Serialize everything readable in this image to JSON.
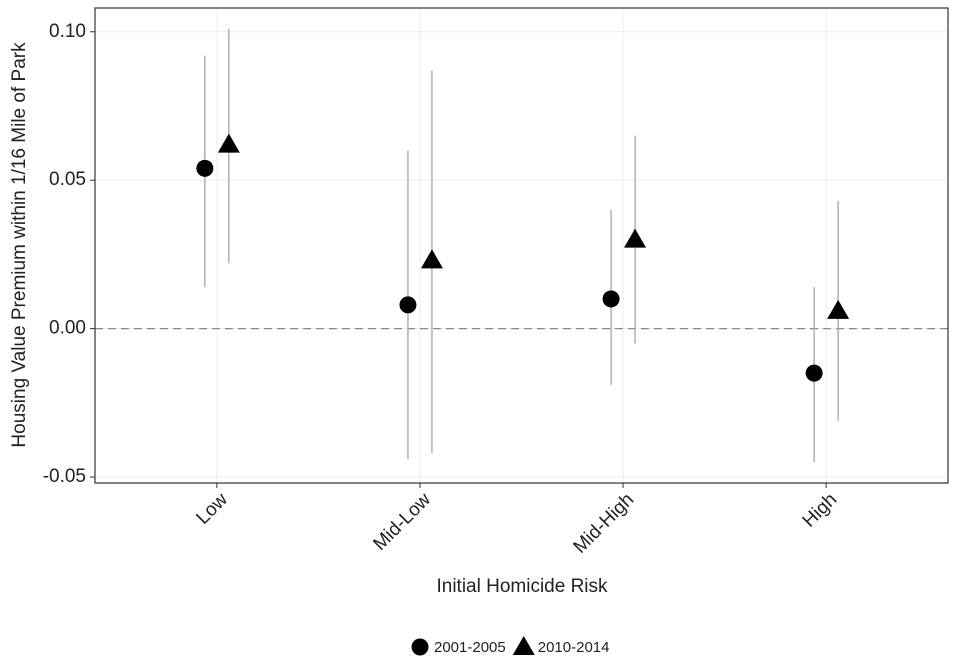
{
  "chart_data": {
    "type": "pointrange",
    "x_label": "Initial Homicide Risk",
    "y_label": "Housing Value Premium within 1/16 Mile of Park",
    "categories": [
      "Low",
      "Mid-Low",
      "Mid-High",
      "High"
    ],
    "series": [
      {
        "name": "2001-2005",
        "shape": "circle",
        "color": "#000000",
        "values": [
          0.054,
          0.008,
          0.01,
          -0.015
        ],
        "lower": [
          0.014,
          -0.044,
          -0.019,
          -0.045
        ],
        "upper": [
          0.092,
          0.06,
          0.04,
          0.014
        ]
      },
      {
        "name": "2010-2014",
        "shape": "triangle",
        "color": "#000000",
        "values": [
          0.062,
          0.023,
          0.03,
          0.006
        ],
        "lower": [
          0.022,
          -0.042,
          -0.005,
          -0.031
        ],
        "upper": [
          0.101,
          0.087,
          0.065,
          0.043
        ]
      }
    ],
    "errorbar_color": "#b0b0b0",
    "hline": 0,
    "ylim": [
      -0.052,
      0.108
    ],
    "yticks": [
      {
        "value": -0.05,
        "label": "-0.05"
      },
      {
        "value": 0,
        "label": "0.00"
      },
      {
        "value": 0.05,
        "label": "0.05"
      },
      {
        "value": 0.1,
        "label": "0.10"
      }
    ],
    "grid": true,
    "legend_position": "bottom"
  }
}
